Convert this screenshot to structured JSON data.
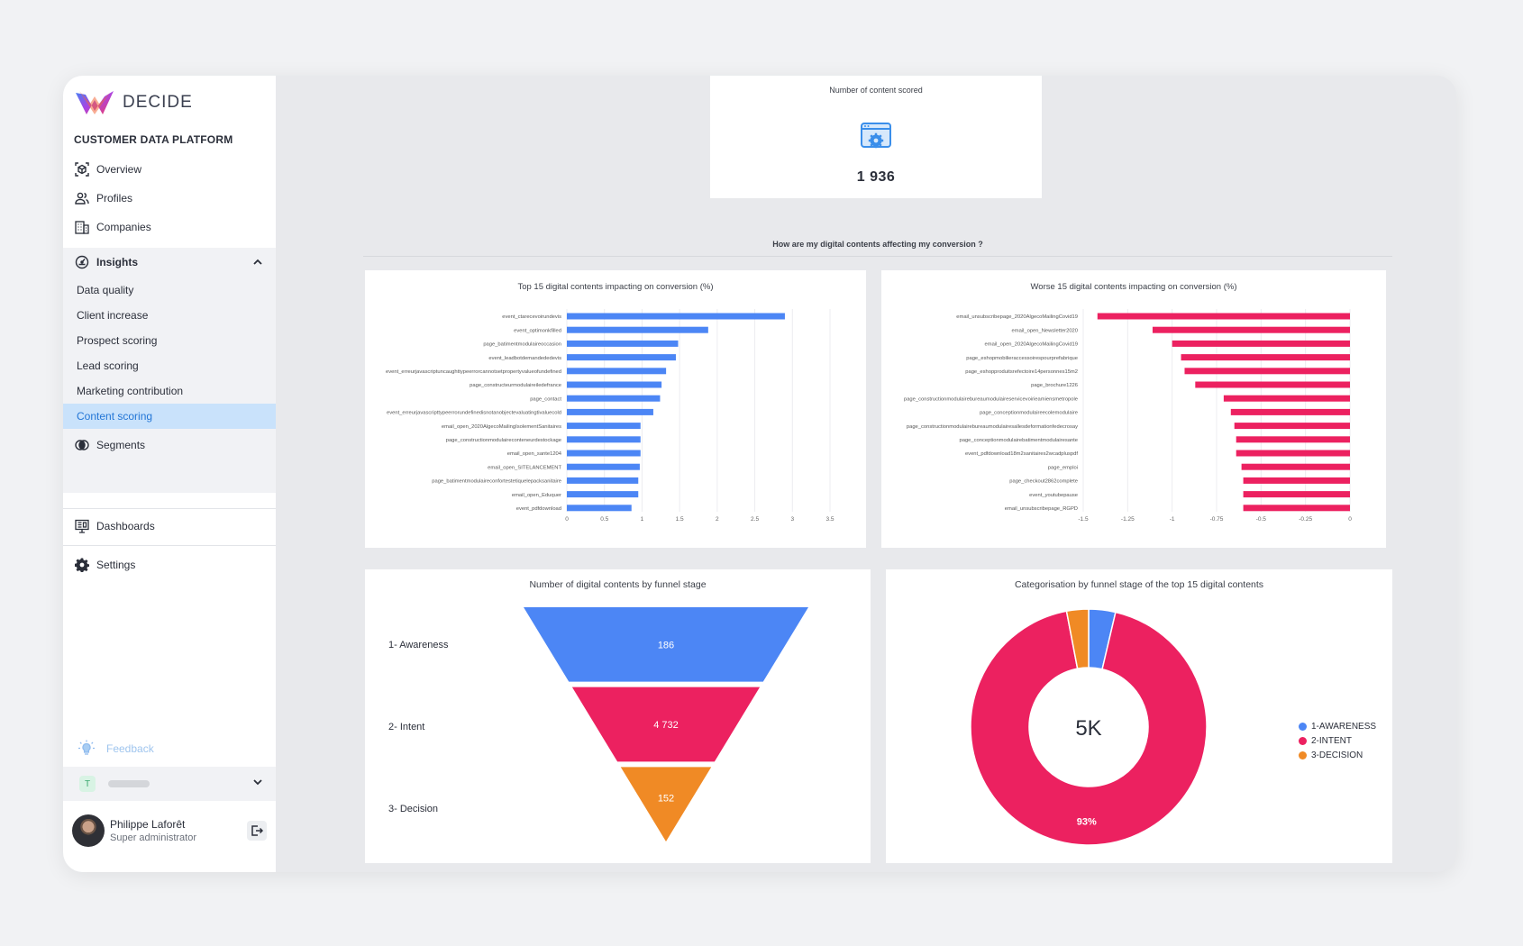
{
  "sidebar": {
    "brand": "DECIDE",
    "platform": "CUSTOMER DATA PLATFORM",
    "nav": {
      "overview": "Overview",
      "profiles": "Profiles",
      "companies": "Companies",
      "insights": "Insights",
      "segments": "Segments",
      "dashboards": "Dashboards",
      "settings": "Settings"
    },
    "insights_items": [
      "Data quality",
      "Client increase",
      "Prospect scoring",
      "Lead scoring",
      "Marketing contribution",
      "Content scoring"
    ],
    "active_item": "Content scoring",
    "feedback": "Feedback",
    "org_badge": "T",
    "user": {
      "name": "Philippe Laforêt",
      "role": "Super administrator"
    }
  },
  "kpi": {
    "title": "Number of content scored",
    "value": "1 936"
  },
  "section_title": "How are my digital contents affecting my conversion ?",
  "chart_data": [
    {
      "type": "bar",
      "orientation": "horizontal",
      "title": "Top 15 digital contents impacting on conversion (%)",
      "categories": [
        "event_ctarecevoirundevis",
        "event_optimonkfilled",
        "page_batimentmodulaireoccasion",
        "event_leadbotdemandededevis",
        "event_erreurjavascriptuncaughttypeerrorcannotsetpropertyvalueofundefined",
        "page_constructeurmodulaireiledefrance",
        "page_contact",
        "event_erreurjavascripttypeerrorundefinedisnotanobjectevaluatingtivaluecold",
        "email_open_2020AlgecoMailingIsolementSanitaires",
        "page_constructionmodulaireconteneurdestockage",
        "email_open_sante1204",
        "email_open_SITELANCEMENT",
        "page_batimentmodulaireconfortestetiquelepacksanitaire",
        "email_open_Eduquer",
        "event_pdfdownload"
      ],
      "values": [
        2.9,
        1.88,
        1.48,
        1.45,
        1.32,
        1.26,
        1.24,
        1.15,
        0.98,
        0.98,
        0.98,
        0.97,
        0.95,
        0.95,
        0.86
      ],
      "xlim": [
        0,
        3.5
      ],
      "xticks": [
        "0",
        "0.5",
        "1",
        "1.5",
        "2",
        "2.5",
        "3",
        "3.5"
      ],
      "color": "#4c86f5"
    },
    {
      "type": "bar",
      "orientation": "horizontal",
      "title": "Worse 15 digital contents impacting on conversion (%)",
      "categories": [
        "email_unsubscribepage_2020AlgecoMailingCovid19",
        "email_open_Newsletter2020",
        "email_open_2020AlgecoMailingCovid19",
        "page_eshopmobilieraccessoirespourprefabrique",
        "page_eshopproduitsrefectoire14personnes15m2",
        "page_brochure1226",
        "page_constructionmodulairebureaumodulaireservicevoirieamiensmetropole",
        "page_conceptionmodulaireecolemodulaire",
        "page_constructionmodulairebureaumodulairesallesdeformationfedecrosay",
        "page_conceptionmodulairebatimentmodulairesante",
        "event_pdfdownload18m2sanitaires2wcadpluspdf",
        "page_emploi",
        "page_checkout2862complete",
        "event_youtubepause",
        "email_unsubscribepage_RGPD"
      ],
      "values": [
        -1.42,
        -1.11,
        -1.0,
        -0.95,
        -0.93,
        -0.87,
        -0.71,
        -0.67,
        -0.65,
        -0.64,
        -0.64,
        -0.61,
        -0.6,
        -0.6,
        -0.6
      ],
      "xlim": [
        -1.5,
        0
      ],
      "xticks": [
        "-1.5",
        "-1.25",
        "-1",
        "-0.75",
        "-0.5",
        "-0.25",
        "0"
      ],
      "color": "#ec2160"
    },
    {
      "type": "funnel",
      "title": "Number of digital contents by funnel stage",
      "categories": [
        "1- Awareness",
        "2- Intent",
        "3- Decision"
      ],
      "values": [
        186,
        4732,
        152
      ],
      "labels": [
        "186",
        "4 732",
        "152"
      ],
      "colors": [
        "#4c86f5",
        "#ec2160",
        "#f08a25"
      ]
    },
    {
      "type": "pie",
      "donut": true,
      "title": "Categorisation by funnel stage of the top 15 digital contents",
      "center_label": "5K",
      "categories": [
        "1-AWARENESS",
        "2-INTENT",
        "3-DECISION"
      ],
      "values": [
        186,
        4732,
        152
      ],
      "slice_labels": [
        "",
        "93%",
        ""
      ],
      "colors": [
        "#4c86f5",
        "#ec2160",
        "#f08a25"
      ],
      "legend": "right"
    }
  ]
}
